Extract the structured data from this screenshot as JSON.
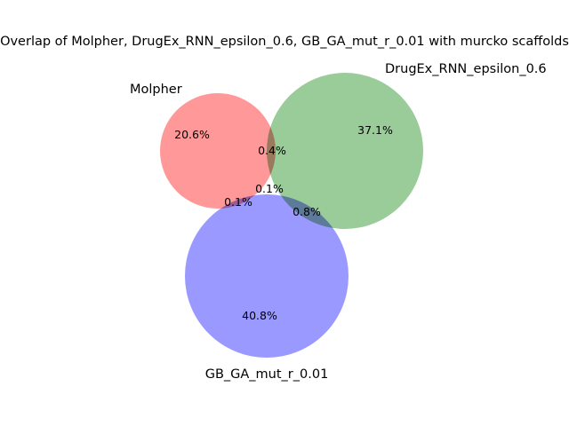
{
  "chart_data": {
    "type": "venn3",
    "title": "Overlap of Molpher, DrugEx_RNN_epsilon_0.6, GB_GA_mut_r_0.01 with murcko scaffolds",
    "sets": [
      {
        "name": "Molpher",
        "color": "#ff9999"
      },
      {
        "name": "DrugEx_RNN_epsilon_0.6",
        "color": "#99cc99"
      },
      {
        "name": "GB_GA_mut_r_0.01",
        "color": "#9999ff"
      }
    ],
    "regions": [
      {
        "sets": [
          "Molpher"
        ],
        "label": "20.6%",
        "value": 20.6
      },
      {
        "sets": [
          "DrugEx_RNN_epsilon_0.6"
        ],
        "label": "37.1%",
        "value": 37.1
      },
      {
        "sets": [
          "GB_GA_mut_r_0.01"
        ],
        "label": "40.8%",
        "value": 40.8
      },
      {
        "sets": [
          "Molpher",
          "DrugEx_RNN_epsilon_0.6"
        ],
        "label": "0.4%",
        "value": 0.4
      },
      {
        "sets": [
          "Molpher",
          "GB_GA_mut_r_0.01"
        ],
        "label": "0.1%",
        "value": 0.1
      },
      {
        "sets": [
          "DrugEx_RNN_epsilon_0.6",
          "GB_GA_mut_r_0.01"
        ],
        "label": "0.8%",
        "value": 0.8
      },
      {
        "sets": [
          "Molpher",
          "DrugEx_RNN_epsilon_0.6",
          "GB_GA_mut_r_0.01"
        ],
        "label": "0.1%",
        "value": 0.1
      }
    ]
  }
}
